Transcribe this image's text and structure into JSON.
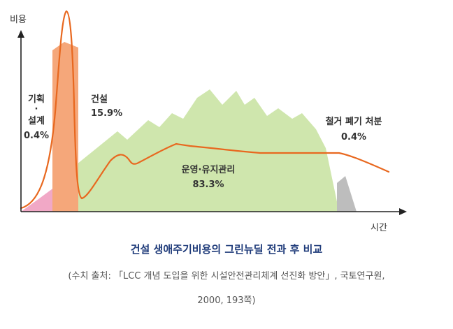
{
  "axes": {
    "y_label": "비용",
    "x_label": "시간"
  },
  "phases": {
    "planning": {
      "line1": "기획",
      "line2": "·",
      "line3": "설계",
      "percent": "0.4%"
    },
    "construction": {
      "label": "건설",
      "percent": "15.9%"
    },
    "operation": {
      "label": "운영·유지관리",
      "percent": "83.3%"
    },
    "demolition": {
      "label": "철거 폐기 처분",
      "percent": "0.4%"
    }
  },
  "caption": {
    "title": "건설 생애주기비용의 그린뉴딜 전과 후 비교",
    "source": "(수치 출처: 「LCC 개념 도입을 위한 시설안전관리체계 선진화 방안」, 국토연구원,",
    "source_year": "2000, 193쪽)"
  },
  "colors": {
    "planning": "#f1a8c6",
    "construction": "#f5a77a",
    "operation": "#cfe6ad",
    "demolition": "#bdbdbd",
    "curve": "#e8681f",
    "caption_title": "#1f3b7a"
  }
}
